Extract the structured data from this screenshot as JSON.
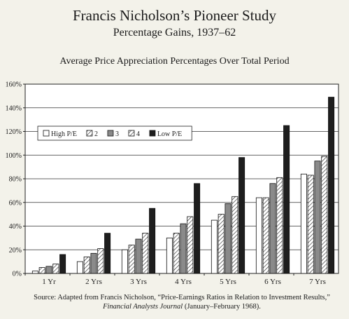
{
  "header": {
    "title": "Francis Nicholson’s Pioneer Study",
    "subtitle": "Percentage Gains, 1937–62"
  },
  "chart_data": {
    "type": "bar",
    "title": "Average Price Appreciation Percentages Over Total Period",
    "categories": [
      "1 Yr",
      "2 Yrs",
      "3 Yrs",
      "4 Yrs",
      "5 Yrs",
      "6 Yrs",
      "7 Yrs"
    ],
    "ylim": [
      0,
      160
    ],
    "yticks": [
      0,
      20,
      40,
      60,
      80,
      100,
      120,
      140,
      160
    ],
    "ytick_suffix": "%",
    "grid": true,
    "legend_position": "top-left",
    "series": [
      {
        "name": "High P/E",
        "pattern": "white",
        "values": [
          2,
          10,
          20,
          30,
          45,
          64,
          84
        ]
      },
      {
        "name": "2",
        "pattern": "hatch",
        "values": [
          5,
          14,
          24,
          34,
          50,
          64,
          83
        ]
      },
      {
        "name": "3",
        "pattern": "gray",
        "values": [
          6,
          17,
          29,
          42,
          59,
          76,
          95
        ]
      },
      {
        "name": "4",
        "pattern": "hatch",
        "values": [
          8,
          21,
          34,
          48,
          65,
          81,
          99
        ]
      },
      {
        "name": "Low P/E",
        "pattern": "black",
        "values": [
          16,
          34,
          55,
          76,
          98,
          125,
          149
        ]
      }
    ]
  },
  "source": {
    "prefix": "Source: Adapted from Francis Nicholson, “Price-Earnings Ratios in Relation to Investment Results,” ",
    "journal": "Financial Analysts Journal",
    "suffix": " (January–February 1968)."
  }
}
